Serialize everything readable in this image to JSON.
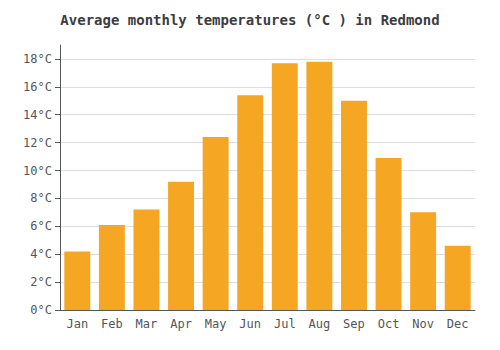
{
  "chart_data": {
    "type": "bar",
    "title": "Average monthly temperatures (°C ) in Redmond",
    "categories": [
      "Jan",
      "Feb",
      "Mar",
      "Apr",
      "May",
      "Jun",
      "Jul",
      "Aug",
      "Sep",
      "Oct",
      "Nov",
      "Dec"
    ],
    "values": [
      4.2,
      6.1,
      7.2,
      9.2,
      12.4,
      15.4,
      17.7,
      17.8,
      15.0,
      10.9,
      7.0,
      4.6
    ],
    "color": "#F5A623",
    "ylim": [
      0,
      19
    ],
    "yticks": [
      {
        "value": 0,
        "label": "0°C"
      },
      {
        "value": 2,
        "label": "2°C"
      },
      {
        "value": 4,
        "label": "4°C"
      },
      {
        "value": 6,
        "label": "6°C"
      },
      {
        "value": 8,
        "label": "8°C"
      },
      {
        "value": 10,
        "label": "10°C"
      },
      {
        "value": 12,
        "label": "12°C"
      },
      {
        "value": 14,
        "label": "14°C"
      },
      {
        "value": 16,
        "label": "16°C"
      },
      {
        "value": 18,
        "label": "18°C"
      }
    ],
    "grid": true
  }
}
